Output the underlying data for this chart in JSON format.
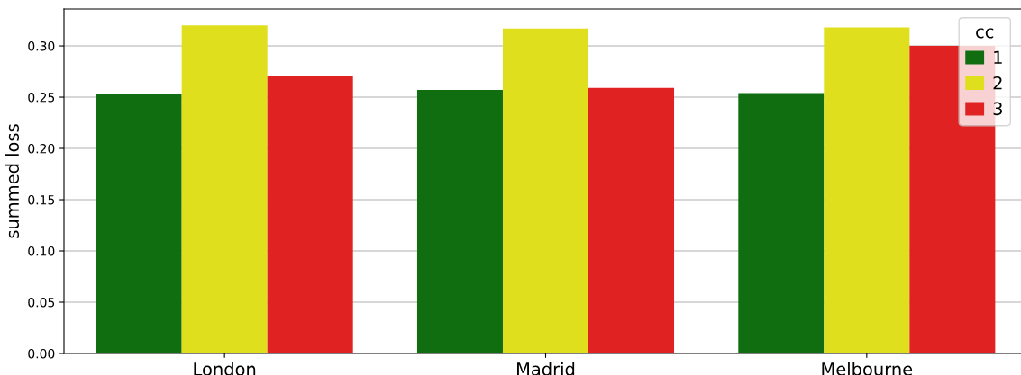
{
  "chart_data": {
    "type": "bar",
    "ylabel": "summed loss",
    "legend_title": "cc",
    "categories": [
      "London",
      "Madrid",
      "Melbourne"
    ],
    "series": [
      {
        "name": "1",
        "color": "#106e10",
        "values": [
          0.253,
          0.257,
          0.254
        ]
      },
      {
        "name": "2",
        "color": "#e0df1e",
        "values": [
          0.32,
          0.317,
          0.318
        ]
      },
      {
        "name": "3",
        "color": "#e02222",
        "values": [
          0.271,
          0.259,
          0.3
        ]
      }
    ],
    "ylim": [
      0,
      0.336
    ],
    "yticks": [
      {
        "value": 0,
        "label": "0.00"
      },
      {
        "value": 0.05,
        "label": "0.05"
      },
      {
        "value": 0.1,
        "label": "0.10"
      },
      {
        "value": 0.15,
        "label": "0.15"
      },
      {
        "value": 0.2,
        "label": "0.20"
      },
      {
        "value": 0.25,
        "label": "0.25"
      },
      {
        "value": 0.3,
        "label": "0.30"
      }
    ],
    "grid": "y",
    "legend": "top right"
  }
}
